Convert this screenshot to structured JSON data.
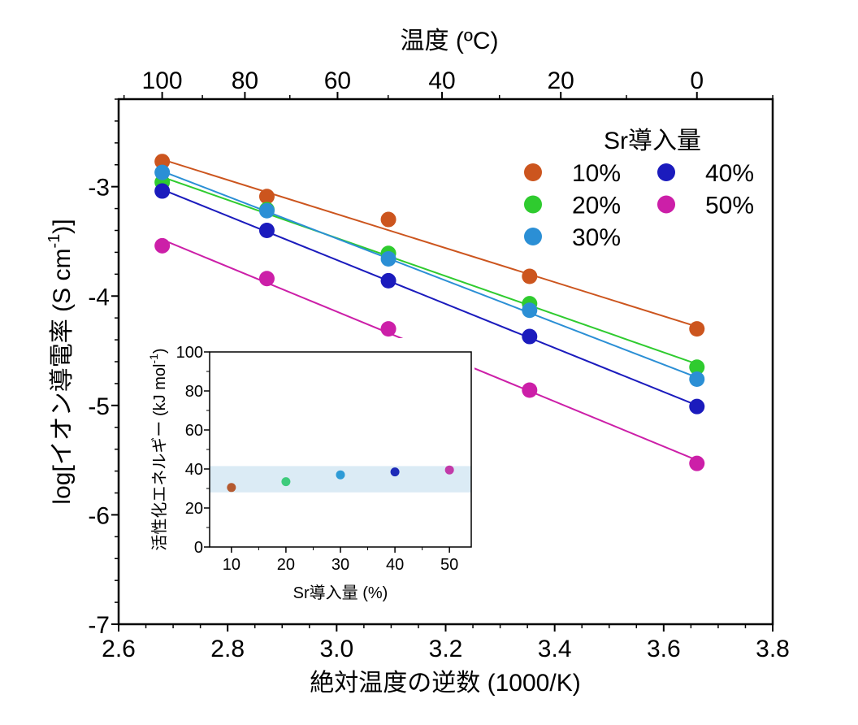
{
  "chart_data": [
    {
      "type": "scatter",
      "xlabel": "絶対温度の逆数 (1000/K)",
      "ylabel": {
        "main": "log[イオン導電率 (S cm",
        "sup": "-1",
        "end": ")]"
      },
      "top_axis": {
        "label": "温度 (ºC)",
        "ticks": [
          "100",
          "80",
          "60",
          "40",
          "20",
          "0"
        ]
      },
      "xlim": [
        2.6,
        3.8
      ],
      "ylim": [
        -7,
        -2.2
      ],
      "x_ticks": [
        "2.6",
        "2.8",
        "3.0",
        "3.2",
        "3.4",
        "3.6",
        "3.8"
      ],
      "y_ticks": [
        "-3",
        "-4",
        "-5",
        "-6",
        "-7"
      ],
      "grid": false,
      "fit_lines": true,
      "x": [
        2.68,
        2.872,
        3.095,
        3.354,
        3.661
      ],
      "legend": {
        "title": "Sr導入量",
        "position": "top-right"
      },
      "series": [
        {
          "name": "10%",
          "color": "#cc551e",
          "values": [
            -2.77,
            -3.09,
            -3.3,
            -3.82,
            -4.3
          ]
        },
        {
          "name": "20%",
          "color": "#2fcb2f",
          "values": [
            -2.96,
            -3.21,
            -3.61,
            -4.07,
            -4.65
          ]
        },
        {
          "name": "30%",
          "color": "#2b8fd5",
          "values": [
            -2.87,
            -3.22,
            -3.66,
            -4.13,
            -4.76
          ]
        },
        {
          "name": "40%",
          "color": "#1b1bbd",
          "values": [
            -3.04,
            -3.4,
            -3.86,
            -4.37,
            -5.01
          ]
        },
        {
          "name": "50%",
          "color": "#cc1fa8",
          "values": [
            -3.54,
            -3.84,
            -4.3,
            -4.86,
            -5.53
          ]
        }
      ]
    },
    {
      "type": "scatter",
      "xlabel": "Sr導入量 (%)",
      "ylabel": {
        "main": "活性化エネルギー (kJ mol",
        "sup": "-1",
        "end": ")"
      },
      "xlim": [
        6,
        54
      ],
      "ylim": [
        0,
        100
      ],
      "x_ticks": [
        "10",
        "20",
        "30",
        "40",
        "50"
      ],
      "y_ticks": [
        "0",
        "20",
        "40",
        "60",
        "80",
        "100"
      ],
      "grid": false,
      "x": [
        10,
        20,
        30,
        40,
        50
      ],
      "values": [
        30.5,
        33.5,
        37.0,
        38.5,
        39.5
      ],
      "colors": [
        "#b45a30",
        "#3ecb7c",
        "#2e9bd6",
        "#1d2bb8",
        "#c23aa9"
      ],
      "band": {
        "range": [
          28,
          41.5
        ],
        "color": "#dbebf5"
      }
    }
  ]
}
